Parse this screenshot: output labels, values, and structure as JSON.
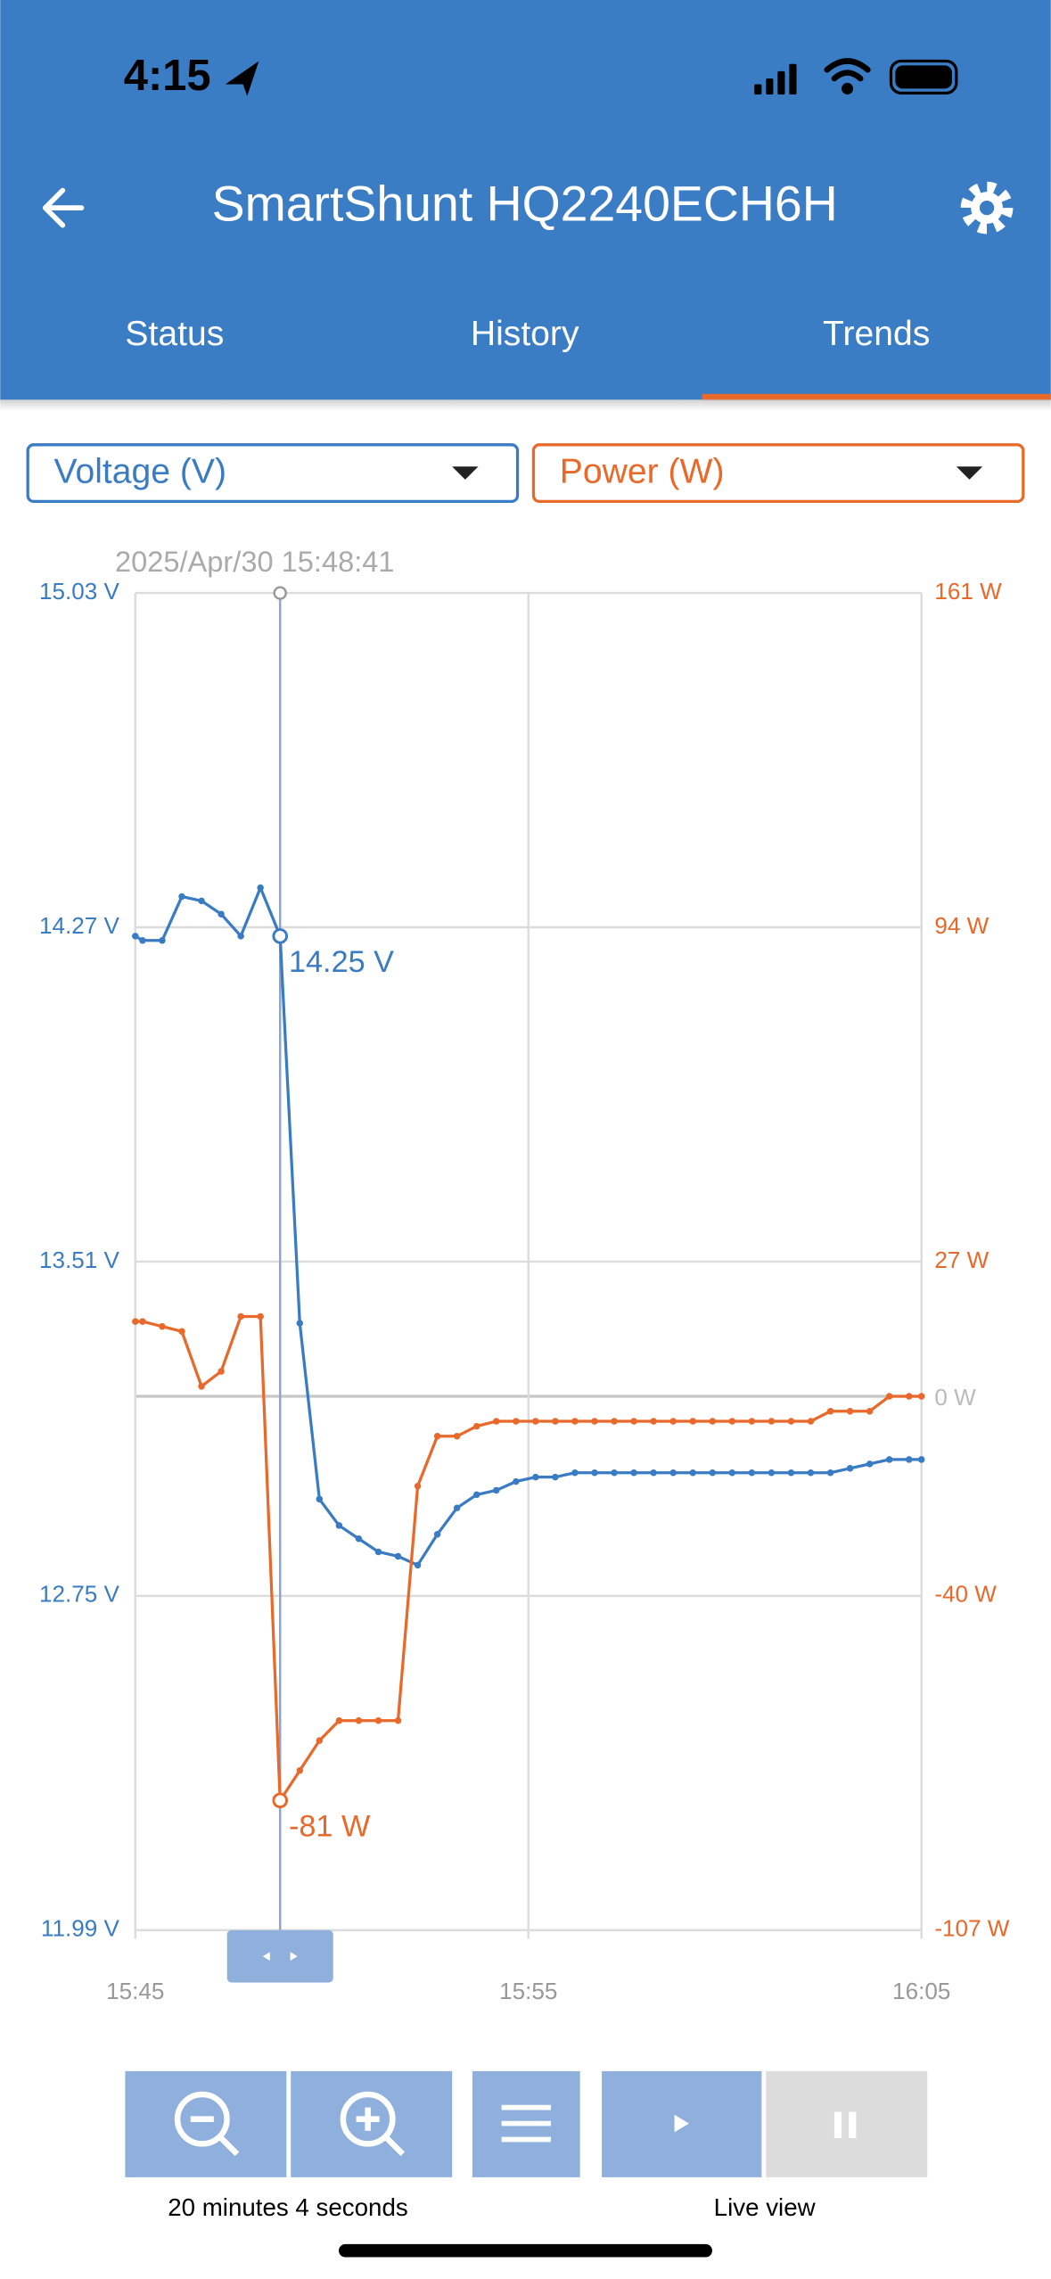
{
  "status_bar": {
    "time": "4:15"
  },
  "header": {
    "title": "SmartShunt HQ2240ECH6H"
  },
  "tabs": [
    "Status",
    "History",
    "Trends"
  ],
  "chart_data": {
    "type": "line",
    "x": [
      "15:45:00",
      "15:45:11",
      "15:45:41",
      "15:46:11",
      "15:46:41",
      "15:47:11",
      "15:47:41",
      "15:48:11",
      "15:48:41",
      "15:49:11",
      "15:49:41",
      "15:50:11",
      "15:50:41",
      "15:51:11",
      "15:51:41",
      "15:52:11",
      "15:52:41",
      "15:53:11",
      "15:53:41",
      "15:54:11",
      "15:54:41",
      "15:55:11",
      "15:55:41",
      "15:56:11",
      "15:56:41",
      "15:57:11",
      "15:57:41",
      "15:58:11",
      "15:58:41",
      "15:59:11",
      "15:59:41",
      "16:00:11",
      "16:00:41",
      "16:01:11",
      "16:01:41",
      "16:02:11",
      "16:02:41",
      "16:03:11",
      "16:03:41",
      "16:04:11",
      "16:04:41",
      "16:05:00"
    ],
    "series": [
      {
        "name": "Voltage (V)",
        "color": "#3a7cc4",
        "axis": "y",
        "values": [
          14.25,
          14.24,
          14.24,
          14.34,
          14.33,
          14.3,
          14.25,
          14.36,
          14.25,
          13.37,
          12.97,
          12.91,
          12.88,
          12.85,
          12.84,
          12.82,
          12.89,
          12.95,
          12.98,
          12.99,
          13.01,
          13.02,
          13.02,
          13.03,
          13.03,
          13.03,
          13.03,
          13.03,
          13.03,
          13.03,
          13.03,
          13.03,
          13.03,
          13.03,
          13.03,
          13.03,
          13.03,
          13.04,
          13.05,
          13.06,
          13.06,
          13.06
        ]
      },
      {
        "name": "Power (W)",
        "color": "#e8692a",
        "axis": "y2",
        "values": [
          15,
          15,
          14,
          13,
          2,
          5,
          16,
          16,
          -81,
          -75,
          -69,
          -65,
          -65,
          -65,
          -65,
          -18,
          -8,
          -8,
          -6,
          -5,
          -5,
          -5,
          -5,
          -5,
          -5,
          -5,
          -5,
          -5,
          -5,
          -5,
          -5,
          -5,
          -5,
          -5,
          -5,
          -5,
          -3,
          -3,
          -3,
          0,
          0,
          0
        ]
      }
    ],
    "xlim": [
      "15:45",
      "16:05"
    ],
    "xticks": [
      "15:45",
      "15:55",
      "16:05"
    ],
    "ylim": [
      11.99,
      15.03
    ],
    "yticks": [
      {
        "value": 11.99,
        "label": "11.99 V"
      },
      {
        "value": 12.75,
        "label": "12.75 V"
      },
      {
        "value": 13.51,
        "label": "13.51 V"
      },
      {
        "value": 14.27,
        "label": "14.27 V"
      },
      {
        "value": 15.03,
        "label": "15.03 V"
      }
    ],
    "y2lim": [
      -107,
      161
    ],
    "y2ticks": [
      {
        "value": -107,
        "label": "-107 W"
      },
      {
        "value": -40,
        "label": "-40 W"
      },
      {
        "value": 0,
        "label": "0 W"
      },
      {
        "value": 27,
        "label": "27 W"
      },
      {
        "value": 94,
        "label": "94 W"
      },
      {
        "value": 161,
        "label": "161 W"
      }
    ],
    "grid": true,
    "cursor": {
      "x": "15:48:41",
      "label": "2025/Apr/30 15:48:41",
      "labels": [
        "14.25 V",
        "-81 W"
      ]
    }
  },
  "footer": {
    "zoom_label": "20 minutes 4 seconds",
    "live_label": "Live view"
  }
}
